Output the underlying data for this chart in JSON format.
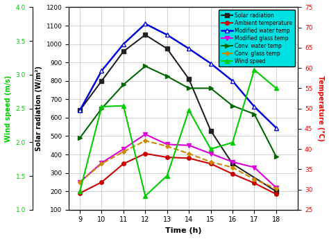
{
  "solar_time": [
    9,
    10,
    11,
    12,
    13,
    14,
    15,
    16,
    18
  ],
  "solar_values": [
    640,
    800,
    960,
    1050,
    975,
    810,
    530,
    350,
    200
  ],
  "ambient_time": [
    9,
    10,
    11,
    12,
    13,
    14,
    15,
    16,
    17,
    18
  ],
  "ambient_values": [
    190,
    250,
    350,
    405,
    385,
    380,
    350,
    295,
    245,
    185
  ],
  "mod_water_time": [
    9,
    10,
    11,
    12,
    13,
    14,
    15,
    16,
    17,
    18
  ],
  "mod_water_values": [
    640,
    855,
    1000,
    1110,
    1050,
    975,
    895,
    800,
    660,
    545
  ],
  "mod_glass_time": [
    9,
    10,
    11,
    12,
    13,
    14,
    15,
    16,
    17,
    18
  ],
  "mod_glass_values": [
    250,
    355,
    430,
    510,
    455,
    450,
    405,
    360,
    330,
    220
  ],
  "conv_water_time": [
    9,
    10,
    11,
    12,
    13,
    14,
    15,
    16,
    17,
    18
  ],
  "conv_water_values": [
    490,
    650,
    780,
    880,
    825,
    760,
    760,
    665,
    620,
    390
  ],
  "conv_glass_time": [
    9,
    10,
    11,
    12,
    13,
    14,
    15,
    16,
    17,
    18
  ],
  "conv_glass_values": [
    250,
    350,
    415,
    475,
    445,
    405,
    360,
    330,
    265,
    215
  ],
  "wind_time": [
    9,
    10,
    11,
    12,
    13,
    14,
    15,
    16,
    17,
    18
  ],
  "wind_values_solar": [
    200,
    660,
    665,
    175,
    285,
    640,
    430,
    465,
    860,
    760
  ],
  "solar_color": "#222222",
  "ambient_color": "#cc0000",
  "mod_water_color": "#0000dd",
  "mod_glass_color": "#dd00dd",
  "conv_water_color": "#006600",
  "conv_glass_color": "#cc8800",
  "wind_color": "#00cc00",
  "legend_bg": "#00e0e0",
  "left_solar_ylabel": "Solar radiation (W/m²)",
  "right_temp_ylabel": "Temperature (°C)",
  "wind_ylabel": "Wind speed (m/s)",
  "xlabel": "Time (h)",
  "ylim_solar": [
    100,
    1200
  ],
  "yticks_solar": [
    100,
    200,
    300,
    400,
    500,
    600,
    700,
    800,
    900,
    1000,
    1100,
    1200
  ],
  "ylim_wind": [
    1.0,
    4.0
  ],
  "yticks_wind": [
    1.0,
    1.5,
    2.0,
    2.5,
    3.0,
    3.5,
    4.0
  ],
  "ylim_temp": [
    25,
    75
  ],
  "yticks_temp": [
    25,
    30,
    35,
    40,
    45,
    50,
    55,
    60,
    65,
    70,
    75
  ],
  "xlim": [
    8.5,
    19
  ],
  "xticks": [
    9,
    10,
    11,
    12,
    13,
    14,
    15,
    16,
    17,
    18
  ]
}
